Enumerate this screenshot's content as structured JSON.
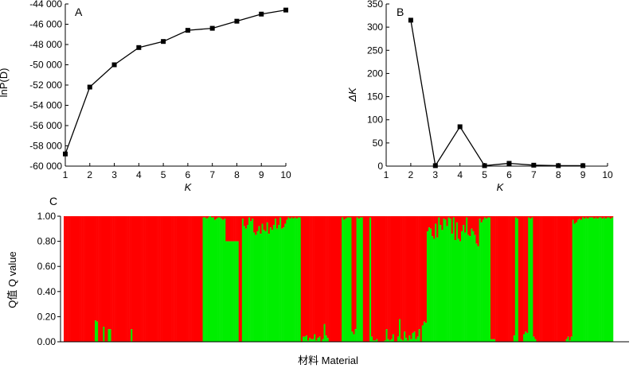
{
  "chart_data": [
    {
      "panel": "A",
      "type": "line",
      "xlabel": "K",
      "ylabel": "lnP(D)",
      "xlim": [
        1,
        10
      ],
      "ylim": [
        -60000,
        -44000
      ],
      "x_ticks": [
        "1",
        "2",
        "3",
        "4",
        "5",
        "6",
        "7",
        "8",
        "9",
        "10"
      ],
      "y_ticks": [
        "-60 000",
        "-58 000",
        "-56 000",
        "-54 000",
        "-52 000",
        "-50 000",
        "-48 000",
        "-46 000",
        "-44 000"
      ],
      "series": [
        {
          "x": [
            1,
            2,
            3,
            4,
            5,
            6,
            7,
            8,
            9,
            10
          ],
          "values": [
            -58800,
            -52200,
            -50000,
            -48300,
            -47700,
            -46600,
            -46400,
            -45700,
            -45000,
            -44600
          ]
        }
      ]
    },
    {
      "panel": "B",
      "type": "line",
      "xlabel": "K",
      "ylabel": "ΔK",
      "xlim": [
        1,
        10
      ],
      "ylim": [
        0,
        350
      ],
      "x_ticks": [
        "1",
        "2",
        "3",
        "4",
        "5",
        "6",
        "7",
        "8",
        "9",
        "10"
      ],
      "y_ticks": [
        "0",
        "50",
        "100",
        "150",
        "200",
        "250",
        "300",
        "350"
      ],
      "series": [
        {
          "x": [
            2,
            3,
            4,
            5,
            6,
            7,
            8,
            9
          ],
          "values": [
            315,
            1,
            85,
            1,
            6,
            2,
            1,
            1
          ]
        }
      ]
    },
    {
      "panel": "C",
      "type": "bar",
      "stacked": true,
      "xlabel": "材料 Material",
      "ylabel": "Q值 Q value",
      "ylim": [
        0,
        1
      ],
      "y_ticks": [
        "0.00",
        "0.20",
        "0.40",
        "0.60",
        "0.80",
        "1.00"
      ],
      "colors": {
        "cluster1": "#ff0000",
        "cluster2": "#00ee00"
      },
      "series": [
        {
          "name": "",
          "color": "#00ee00",
          "values": [
            0,
            0,
            0,
            0,
            0,
            0,
            0,
            0,
            0,
            0,
            0,
            0,
            0,
            0,
            0,
            0,
            0,
            0,
            0,
            0.17,
            0.16,
            0,
            0,
            0,
            0.12,
            0,
            0,
            0.1,
            0.1,
            0,
            0,
            0,
            0,
            0,
            0,
            0,
            0,
            0,
            0,
            0,
            0,
            0.1,
            0,
            0,
            0,
            0,
            0,
            0,
            0,
            0,
            0,
            0,
            0,
            0,
            0,
            0,
            0,
            0,
            0,
            0,
            0,
            0,
            0,
            0,
            0,
            0,
            0,
            0,
            0,
            0,
            0,
            0,
            0,
            0,
            0,
            0,
            0,
            0,
            0,
            0,
            0,
            0,
            0,
            0,
            0,
            0.99,
            0.99,
            0.98,
            0.99,
            1.0,
            0.99,
            0.99,
            0.97,
            0.98,
            0.99,
            0.99,
            0.98,
            0.97,
            0.98,
            0.8,
            0.8,
            0.8,
            0.8,
            0.8,
            0.8,
            0.8,
            0.8,
            0,
            0,
            0.98,
            0.92,
            0.9,
            0.93,
            0.99,
            0.96,
            0.98,
            0.87,
            0.85,
            0.88,
            0.92,
            0.86,
            0.94,
            0.89,
            0.88,
            0.95,
            0.86,
            0.91,
            0.89,
            0.93,
            0.98,
            0.9,
            0.93,
            0.99,
            0.9,
            0.91,
            0.94,
            0.97,
            0.99,
            0.98,
            0.99,
            0.98,
            0.99,
            0.98,
            0.99,
            0.99,
            0,
            0.04,
            0.04,
            0.05,
            0.01,
            0.03,
            0.02,
            0.02,
            0.06,
            0.01,
            0.03,
            0.04,
            0,
            0.02,
            0.14,
            0.05,
            0.03,
            0,
            0,
            0,
            0,
            0,
            0,
            0,
            0,
            0.99,
            0.97,
            0.98,
            0.99,
            0.99,
            0.99,
            0.08,
            0.06,
            0.1,
            0.99,
            0.98,
            0.99,
            0.99,
            0,
            0,
            0,
            0,
            0.99,
            0.04,
            0.01,
            0.01,
            0.02,
            0,
            0,
            0,
            0,
            0.01,
            0.1,
            0.02,
            0.01,
            0.02,
            0.06,
            0,
            0,
            0.04,
            0.18,
            0.02,
            0.01,
            0.08,
            0.03,
            0.01,
            0.05,
            0.02,
            0.07,
            0.08,
            0.02,
            0.04,
            0.1,
            0,
            0.13,
            0.16,
            0.15,
            0.88,
            0.91,
            0.9,
            0.84,
            0.82,
            0.94,
            0.83,
            0.99,
            0.93,
            0.89,
            0.98,
            0.97,
            0.92,
            0.99,
            0.98,
            0.86,
            0.99,
            0.81,
            0.95,
            0.82,
            0.8,
            0.88,
            0.93,
            0.87,
            0.99,
            0.85,
            0.84,
            0.9,
            0.88,
            0.85,
            0.78,
            0.76,
            0.98,
            0.95,
            0.97,
            0.99,
            0.98,
            0.99,
            0.99,
            0.02,
            0.02,
            0.02,
            0,
            0,
            0,
            0,
            0,
            0,
            0,
            0,
            0,
            0,
            0,
            0.05,
            0.99,
            0.98,
            0,
            0,
            0,
            0.06,
            0.08,
            0.07,
            0.99,
            0.98,
            0.99,
            0.04,
            0.02,
            0,
            0,
            0,
            0,
            0,
            0,
            0,
            0,
            0,
            0,
            0,
            0,
            0,
            0,
            0,
            0,
            0,
            0,
            0.02,
            0.04,
            0.01,
            0.04,
            0.97,
            0.94,
            0.95,
            0.97,
            0.98,
            0.97,
            0.99,
            0.98,
            0.99,
            0.98,
            0.99,
            0.99,
            0.99,
            0.98,
            0.99,
            0.98,
            0.99,
            0.99,
            0.98,
            0.99,
            0.98,
            0.99,
            0.99,
            0.98,
            0.99
          ]
        }
      ]
    }
  ],
  "panels": {
    "a": "A",
    "b": "B",
    "c": "C"
  }
}
